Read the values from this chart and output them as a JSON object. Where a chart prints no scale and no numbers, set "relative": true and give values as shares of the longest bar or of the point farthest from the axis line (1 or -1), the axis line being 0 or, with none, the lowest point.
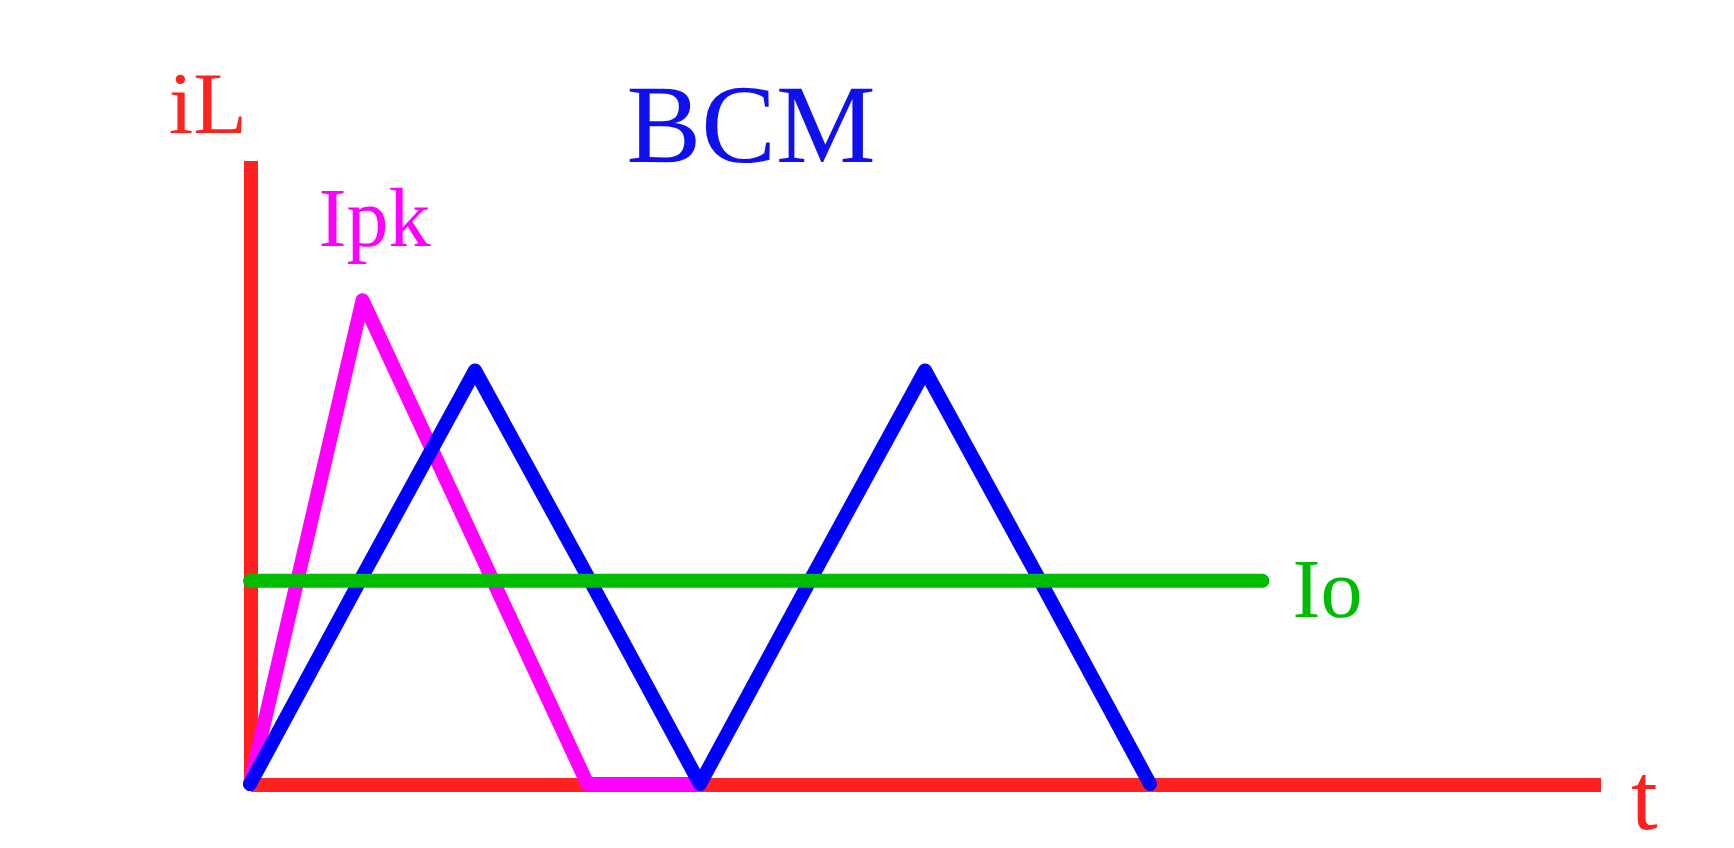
{
  "chart_data": {
    "type": "line",
    "title": "BCM",
    "xlabel": "t",
    "ylabel": "iL",
    "relative": true,
    "grid": false,
    "line_style": "solid",
    "categories": [
      null,
      null,
      null,
      null,
      null,
      null,
      null,
      null,
      null,
      null,
      null,
      null,
      null
    ],
    "series": [
      {
        "name": "Ipk",
        "color": "#ff00ff",
        "values": [
          0,
          1,
          0.5,
          0,
          0,
          null,
          null,
          null,
          null,
          null,
          null,
          null,
          null
        ]
      },
      {
        "color": "#0000ff",
        "values": [
          0,
          0.43,
          0.855,
          0.43,
          0,
          0.43,
          0.855,
          0.43,
          0,
          null,
          null,
          null,
          null
        ]
      },
      {
        "name": "Io",
        "color": "#00bb00",
        "values": [
          0.42,
          0.42,
          0.42,
          0.42,
          0.42,
          0.42,
          0.42,
          0.42,
          0.42,
          0.42,
          null,
          null,
          null
        ]
      }
    ]
  }
}
